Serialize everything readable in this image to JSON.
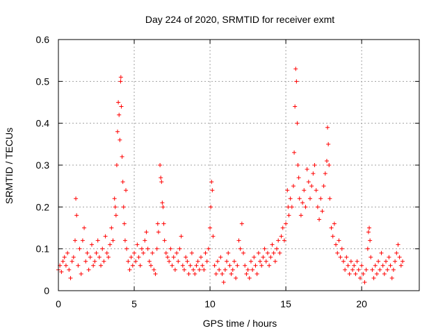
{
  "chart_data": {
    "type": "scatter",
    "title": "Day 224 of 2020, SRMTID for receiver exmt",
    "xlabel": "GPS time / hours",
    "ylabel": "SRMTID / TECUs",
    "xlim": [
      0,
      23.8
    ],
    "ylim": [
      0,
      0.6
    ],
    "xticks": [
      0,
      5,
      10,
      15,
      20
    ],
    "xtick_labels": [
      "0",
      "5",
      "10",
      "15",
      "20"
    ],
    "yticks": [
      0,
      0.1,
      0.2,
      0.3,
      0.4,
      0.5,
      0.6
    ],
    "ytick_labels": [
      "0",
      "0.1",
      "0.2",
      "0.3",
      "0.4",
      "0.5",
      "0.6"
    ],
    "grid": true,
    "marker": "+",
    "color": "#ff0000",
    "series": [
      {
        "name": "SRMTID",
        "points": [
          [
            0.0,
            0.05
          ],
          [
            0.1,
            0.06
          ],
          [
            0.2,
            0.045
          ],
          [
            0.3,
            0.07
          ],
          [
            0.4,
            0.08
          ],
          [
            0.5,
            0.06
          ],
          [
            0.6,
            0.09
          ],
          [
            0.7,
            0.05
          ],
          [
            0.8,
            0.03
          ],
          [
            0.9,
            0.07
          ],
          [
            1.0,
            0.08
          ],
          [
            1.1,
            0.12
          ],
          [
            1.15,
            0.22
          ],
          [
            1.2,
            0.18
          ],
          [
            1.3,
            0.06
          ],
          [
            1.4,
            0.1
          ],
          [
            1.5,
            0.04
          ],
          [
            1.6,
            0.12
          ],
          [
            1.7,
            0.15
          ],
          [
            1.8,
            0.07
          ],
          [
            1.9,
            0.09
          ],
          [
            2.0,
            0.05
          ],
          [
            2.1,
            0.08
          ],
          [
            2.2,
            0.11
          ],
          [
            2.3,
            0.06
          ],
          [
            2.4,
            0.07
          ],
          [
            2.5,
            0.09
          ],
          [
            2.6,
            0.12
          ],
          [
            2.7,
            0.08
          ],
          [
            2.8,
            0.06
          ],
          [
            2.9,
            0.1
          ],
          [
            3.0,
            0.07
          ],
          [
            3.1,
            0.13
          ],
          [
            3.2,
            0.09
          ],
          [
            3.3,
            0.08
          ],
          [
            3.4,
            0.11
          ],
          [
            3.5,
            0.15
          ],
          [
            3.6,
            0.12
          ],
          [
            3.7,
            0.22
          ],
          [
            3.75,
            0.2
          ],
          [
            3.8,
            0.18
          ],
          [
            3.85,
            0.3
          ],
          [
            3.9,
            0.38
          ],
          [
            3.95,
            0.45
          ],
          [
            4.0,
            0.42
          ],
          [
            4.05,
            0.36
          ],
          [
            4.1,
            0.5
          ],
          [
            4.12,
            0.51
          ],
          [
            4.15,
            0.44
          ],
          [
            4.2,
            0.32
          ],
          [
            4.25,
            0.26
          ],
          [
            4.3,
            0.2
          ],
          [
            4.35,
            0.16
          ],
          [
            4.4,
            0.12
          ],
          [
            4.45,
            0.24
          ],
          [
            4.5,
            0.1
          ],
          [
            4.6,
            0.07
          ],
          [
            4.7,
            0.05
          ],
          [
            4.8,
            0.08
          ],
          [
            4.9,
            0.06
          ],
          [
            5.0,
            0.09
          ],
          [
            5.1,
            0.07
          ],
          [
            5.2,
            0.11
          ],
          [
            5.3,
            0.08
          ],
          [
            5.4,
            0.06
          ],
          [
            5.5,
            0.1
          ],
          [
            5.6,
            0.09
          ],
          [
            5.7,
            0.12
          ],
          [
            5.8,
            0.14
          ],
          [
            5.9,
            0.1
          ],
          [
            6.0,
            0.07
          ],
          [
            6.1,
            0.06
          ],
          [
            6.2,
            0.09
          ],
          [
            6.3,
            0.05
          ],
          [
            6.4,
            0.04
          ],
          [
            6.5,
            0.1
          ],
          [
            6.55,
            0.16
          ],
          [
            6.6,
            0.14
          ],
          [
            6.7,
            0.3
          ],
          [
            6.75,
            0.27
          ],
          [
            6.8,
            0.26
          ],
          [
            6.85,
            0.21
          ],
          [
            6.9,
            0.2
          ],
          [
            6.95,
            0.16
          ],
          [
            7.0,
            0.12
          ],
          [
            7.1,
            0.09
          ],
          [
            7.2,
            0.08
          ],
          [
            7.3,
            0.07
          ],
          [
            7.4,
            0.1
          ],
          [
            7.5,
            0.06
          ],
          [
            7.6,
            0.08
          ],
          [
            7.7,
            0.05
          ],
          [
            7.8,
            0.09
          ],
          [
            7.9,
            0.07
          ],
          [
            8.0,
            0.1
          ],
          [
            8.1,
            0.13
          ],
          [
            8.2,
            0.06
          ],
          [
            8.3,
            0.05
          ],
          [
            8.4,
            0.08
          ],
          [
            8.5,
            0.07
          ],
          [
            8.6,
            0.04
          ],
          [
            8.7,
            0.06
          ],
          [
            8.8,
            0.09
          ],
          [
            8.9,
            0.05
          ],
          [
            9.0,
            0.04
          ],
          [
            9.1,
            0.06
          ],
          [
            9.2,
            0.07
          ],
          [
            9.3,
            0.05
          ],
          [
            9.4,
            0.08
          ],
          [
            9.5,
            0.06
          ],
          [
            9.6,
            0.05
          ],
          [
            9.7,
            0.09
          ],
          [
            9.8,
            0.07
          ],
          [
            9.9,
            0.1
          ],
          [
            10.0,
            0.15
          ],
          [
            10.05,
            0.2
          ],
          [
            10.1,
            0.26
          ],
          [
            10.15,
            0.24
          ],
          [
            10.2,
            0.13
          ],
          [
            10.3,
            0.06
          ],
          [
            10.4,
            0.04
          ],
          [
            10.5,
            0.07
          ],
          [
            10.6,
            0.05
          ],
          [
            10.7,
            0.08
          ],
          [
            10.8,
            0.04
          ],
          [
            10.9,
            0.02
          ],
          [
            11.0,
            0.05
          ],
          [
            11.1,
            0.07
          ],
          [
            11.2,
            0.09
          ],
          [
            11.3,
            0.06
          ],
          [
            11.4,
            0.04
          ],
          [
            11.5,
            0.05
          ],
          [
            11.6,
            0.07
          ],
          [
            11.7,
            0.03
          ],
          [
            11.8,
            0.06
          ],
          [
            11.9,
            0.12
          ],
          [
            12.0,
            0.1
          ],
          [
            12.1,
            0.16
          ],
          [
            12.2,
            0.09
          ],
          [
            12.3,
            0.06
          ],
          [
            12.4,
            0.04
          ],
          [
            12.5,
            0.05
          ],
          [
            12.6,
            0.03
          ],
          [
            12.7,
            0.07
          ],
          [
            12.8,
            0.05
          ],
          [
            12.9,
            0.08
          ],
          [
            13.0,
            0.06
          ],
          [
            13.1,
            0.04
          ],
          [
            13.2,
            0.09
          ],
          [
            13.3,
            0.07
          ],
          [
            13.4,
            0.06
          ],
          [
            13.5,
            0.08
          ],
          [
            13.6,
            0.1
          ],
          [
            13.7,
            0.07
          ],
          [
            13.8,
            0.09
          ],
          [
            13.9,
            0.06
          ],
          [
            14.0,
            0.08
          ],
          [
            14.1,
            0.11
          ],
          [
            14.2,
            0.09
          ],
          [
            14.3,
            0.07
          ],
          [
            14.4,
            0.1
          ],
          [
            14.5,
            0.12
          ],
          [
            14.6,
            0.09
          ],
          [
            14.7,
            0.13
          ],
          [
            14.8,
            0.15
          ],
          [
            14.9,
            0.12
          ],
          [
            15.0,
            0.16
          ],
          [
            15.1,
            0.24
          ],
          [
            15.15,
            0.2
          ],
          [
            15.2,
            0.18
          ],
          [
            15.3,
            0.22
          ],
          [
            15.4,
            0.2
          ],
          [
            15.5,
            0.25
          ],
          [
            15.55,
            0.33
          ],
          [
            15.6,
            0.44
          ],
          [
            15.65,
            0.53
          ],
          [
            15.7,
            0.5
          ],
          [
            15.75,
            0.4
          ],
          [
            15.8,
            0.3
          ],
          [
            15.85,
            0.27
          ],
          [
            15.9,
            0.22
          ],
          [
            16.0,
            0.18
          ],
          [
            16.1,
            0.21
          ],
          [
            16.2,
            0.24
          ],
          [
            16.3,
            0.2
          ],
          [
            16.4,
            0.29
          ],
          [
            16.5,
            0.26
          ],
          [
            16.6,
            0.22
          ],
          [
            16.7,
            0.25
          ],
          [
            16.8,
            0.28
          ],
          [
            16.9,
            0.3
          ],
          [
            17.0,
            0.24
          ],
          [
            17.1,
            0.2
          ],
          [
            17.2,
            0.17
          ],
          [
            17.3,
            0.22
          ],
          [
            17.4,
            0.19
          ],
          [
            17.5,
            0.25
          ],
          [
            17.6,
            0.28
          ],
          [
            17.7,
            0.31
          ],
          [
            17.75,
            0.39
          ],
          [
            17.8,
            0.35
          ],
          [
            17.85,
            0.3
          ],
          [
            17.9,
            0.22
          ],
          [
            18.0,
            0.15
          ],
          [
            18.1,
            0.13
          ],
          [
            18.2,
            0.16
          ],
          [
            18.3,
            0.11
          ],
          [
            18.4,
            0.09
          ],
          [
            18.5,
            0.12
          ],
          [
            18.6,
            0.08
          ],
          [
            18.7,
            0.1
          ],
          [
            18.8,
            0.07
          ],
          [
            18.9,
            0.05
          ],
          [
            19.0,
            0.08
          ],
          [
            19.1,
            0.06
          ],
          [
            19.2,
            0.04
          ],
          [
            19.3,
            0.07
          ],
          [
            19.4,
            0.05
          ],
          [
            19.5,
            0.06
          ],
          [
            19.6,
            0.04
          ],
          [
            19.7,
            0.07
          ],
          [
            19.8,
            0.05
          ],
          [
            19.9,
            0.03
          ],
          [
            20.0,
            0.06
          ],
          [
            20.1,
            0.04
          ],
          [
            20.2,
            0.02
          ],
          [
            20.3,
            0.05
          ],
          [
            20.4,
            0.1
          ],
          [
            20.45,
            0.14
          ],
          [
            20.5,
            0.15
          ],
          [
            20.55,
            0.12
          ],
          [
            20.6,
            0.08
          ],
          [
            20.7,
            0.05
          ],
          [
            20.8,
            0.03
          ],
          [
            20.9,
            0.06
          ],
          [
            21.0,
            0.04
          ],
          [
            21.1,
            0.07
          ],
          [
            21.2,
            0.05
          ],
          [
            21.3,
            0.09
          ],
          [
            21.4,
            0.06
          ],
          [
            21.5,
            0.04
          ],
          [
            21.6,
            0.07
          ],
          [
            21.7,
            0.05
          ],
          [
            21.8,
            0.08
          ],
          [
            21.9,
            0.06
          ],
          [
            22.0,
            0.03
          ],
          [
            22.1,
            0.05
          ],
          [
            22.2,
            0.07
          ],
          [
            22.3,
            0.09
          ],
          [
            22.4,
            0.11
          ],
          [
            22.5,
            0.08
          ],
          [
            22.6,
            0.06
          ],
          [
            22.7,
            0.07
          ]
        ]
      }
    ]
  }
}
